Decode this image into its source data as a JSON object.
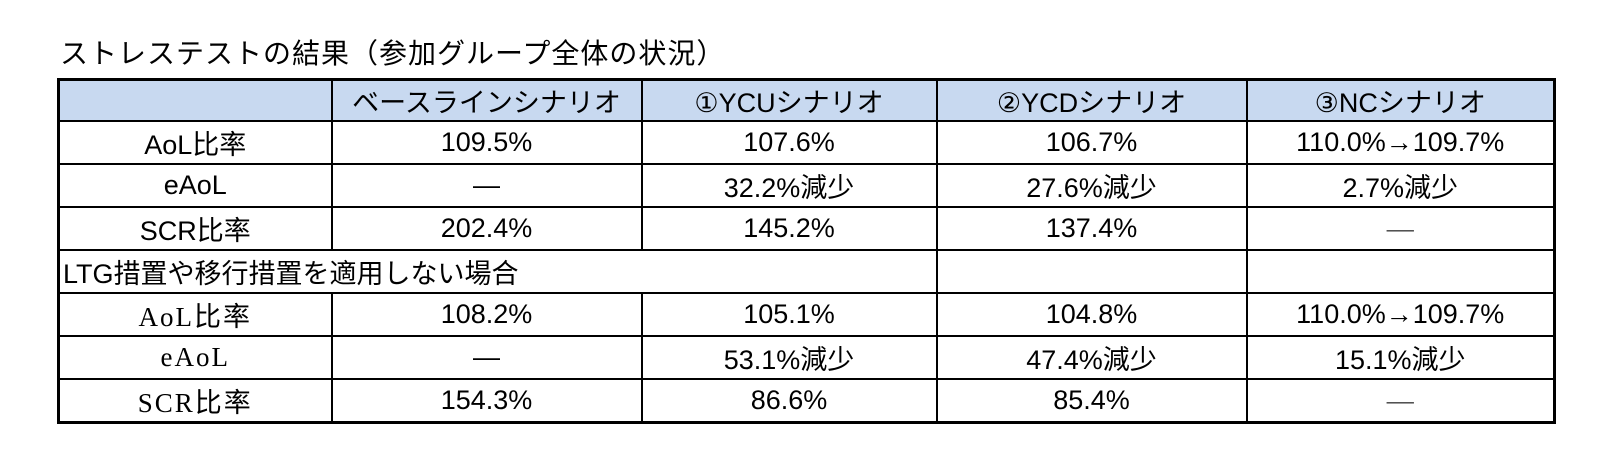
{
  "title": "ストレステストの結果（参加グループ全体の状況）",
  "table": {
    "header_bg": "#c8d9f0",
    "header": {
      "col0": "",
      "col1": "ベースラインシナリオ",
      "col2": "①YCUシナリオ",
      "col3": "②YCDシナリオ",
      "col4": "③NCシナリオ"
    },
    "rows_top": [
      {
        "label": "AoL比率",
        "values": [
          "109.5%",
          "107.6%",
          "106.7%",
          "110.0%→109.7%"
        ]
      },
      {
        "label": "eAoL",
        "values": [
          "―",
          "32.2%減少",
          "27.6%減少",
          "2.7%減少"
        ]
      },
      {
        "label": "SCR比率",
        "values": [
          "202.4%",
          "145.2%",
          "137.4%",
          "―"
        ]
      }
    ],
    "section_row": {
      "label": "LTG措置や移行措置を適用しない場合"
    },
    "rows_bottom": [
      {
        "label": "AoL比率",
        "values": [
          "108.2%",
          "105.1%",
          "104.8%",
          "110.0%→109.7%"
        ]
      },
      {
        "label": "eAoL",
        "values": [
          "―",
          "53.1%減少",
          "47.4%減少",
          "15.1%減少"
        ]
      },
      {
        "label": "SCR比率",
        "values": [
          "154.3%",
          "86.6%",
          "85.4%",
          "―"
        ]
      }
    ]
  }
}
